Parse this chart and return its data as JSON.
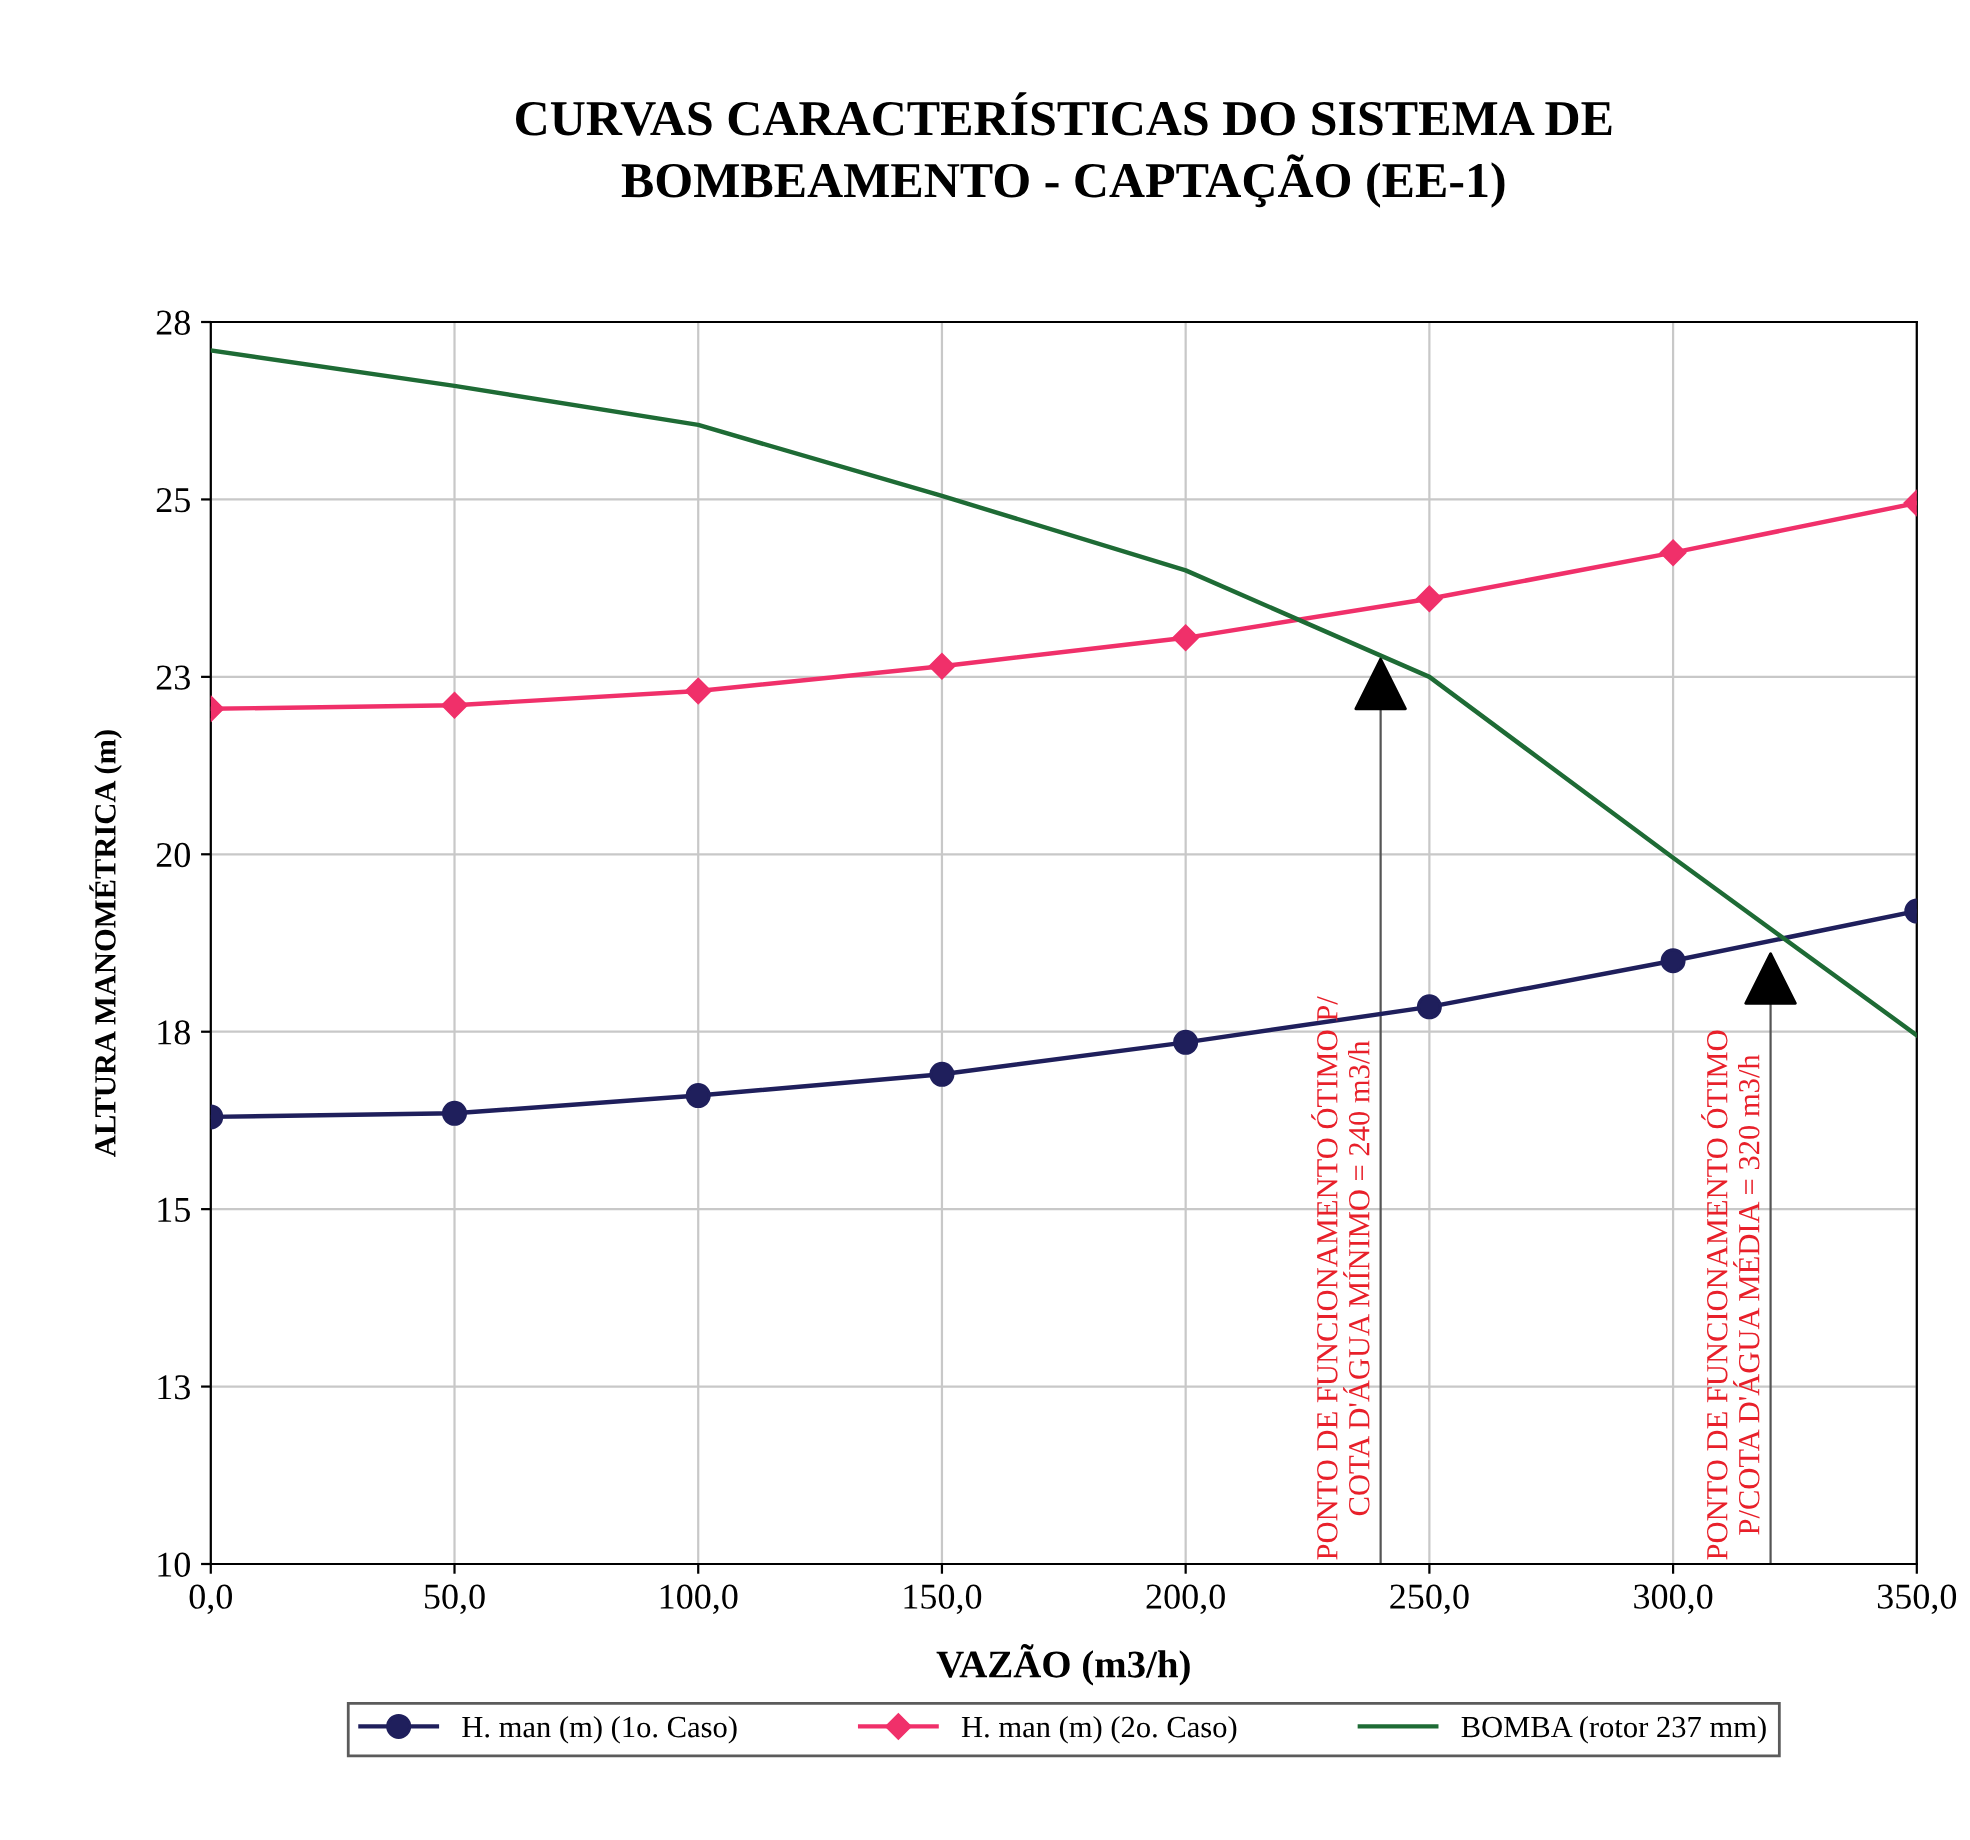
{
  "chart_data": {
    "type": "line",
    "title": "CURVAS CARACTERÍSTICAS DO SISTEMA DE\nBOMBEAMENTO - CAPTAÇÃO (EE-1)",
    "xlabel": "VAZÃO (m3/h)",
    "ylabel": "ALTURA MANOMÉTRICA (m)",
    "x": [
      0,
      50,
      100,
      150,
      200,
      250,
      300,
      350
    ],
    "series": [
      {
        "name": "H. man (m) (1o. Caso)",
        "color": "#1f1f5c",
        "marker": "circle",
        "values": [
          16.3,
          16.35,
          16.6,
          16.9,
          17.35,
          17.85,
          18.5,
          19.2
        ]
      },
      {
        "name": "H. man (m) (2o. Caso)",
        "color": "#f0306a",
        "marker": "diamond",
        "values": [
          22.05,
          22.1,
          22.3,
          22.65,
          23.05,
          23.6,
          24.25,
          24.95
        ]
      },
      {
        "name": "BOMBA (rotor 237 mm)",
        "color": "#1e6b35",
        "marker": "none",
        "values": [
          27.1,
          26.6,
          26.05,
          25.05,
          24.0,
          22.5,
          19.95,
          17.45
        ]
      },
      {
        "type": "scatter",
        "color": "#000000",
        "marker": "triangle",
        "x": [
          240,
          320
        ],
        "values": [
          22.4,
          18.25
        ]
      }
    ],
    "ref_lines": [
      {
        "axis": "x",
        "value": 240,
        "color": "#555555",
        "label": "PONTO DE FUNCIONAMENTO ÓTIMO P/\nCOTA D'ÁGUA MÍNIMO = 240 m3/h"
      },
      {
        "axis": "x",
        "value": 320,
        "color": "#555555",
        "label": "PONTO DE FUNCIONAMENTO ÓTIMO\nP/COTA D'ÁGUA MÉDIA = 320 m3/h"
      }
    ],
    "xlim": [
      0,
      350
    ],
    "xticks": [
      {
        "value": 0,
        "label": "0,0"
      },
      {
        "value": 50,
        "label": "50,0"
      },
      {
        "value": 100,
        "label": "100,0"
      },
      {
        "value": 150,
        "label": "150,0"
      },
      {
        "value": 200,
        "label": "200,0"
      },
      {
        "value": 250,
        "label": "250,0"
      },
      {
        "value": 300,
        "label": "300,0"
      },
      {
        "value": 350,
        "label": "350,0"
      }
    ],
    "ylim": [
      10,
      27.5
    ],
    "yticks": [
      10,
      {
        "value": 12.5,
        "label": "13"
      },
      15,
      {
        "value": 17.5,
        "label": "18"
      },
      20,
      {
        "value": 22.5,
        "label": "23"
      },
      25,
      {
        "value": 27.5,
        "label": "28"
      }
    ],
    "grid": true,
    "legend": "bottom",
    "line_style": "solid"
  }
}
